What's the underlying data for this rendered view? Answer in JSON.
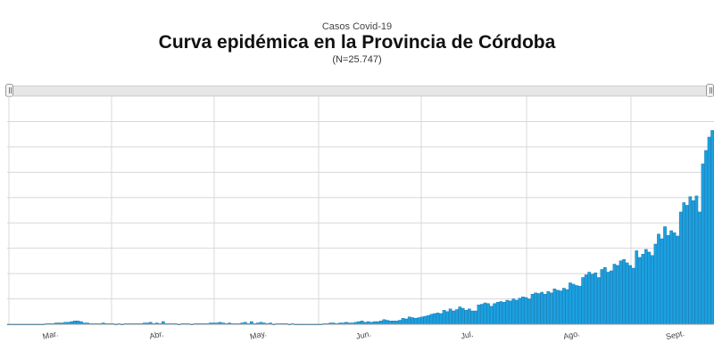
{
  "header": {
    "subtitle": "Casos Covid-19",
    "title": "Curva epidémica en la Provincia de Córdoba",
    "note": "(N=25.747)"
  },
  "chart_data": {
    "type": "bar",
    "title": "Curva epidémica en la Provincia de Córdoba",
    "subtitle": "Casos Covid-19",
    "note": "(N=25.747)",
    "xlabel": "",
    "ylabel": "",
    "grid": true,
    "colors": {
      "bar": "#1ca0e0",
      "bar_stroke": "#0e6fa8",
      "grid": "#d8d8d8"
    },
    "month_labels": [
      "Mar.",
      "Abr.",
      "May.",
      "Jun.",
      "Jul.",
      "Ago.",
      "Sept."
    ],
    "x_start_label": "Mar.",
    "values": [
      0,
      0,
      0,
      0,
      0,
      0,
      0,
      0,
      0,
      0,
      0,
      0,
      1,
      1,
      1,
      2,
      2,
      2,
      3,
      3,
      4,
      5,
      5,
      4,
      2,
      2,
      1,
      1,
      1,
      1,
      2,
      1,
      1,
      1,
      0,
      1,
      0,
      1,
      1,
      1,
      1,
      1,
      1,
      2,
      2,
      3,
      1,
      2,
      1,
      4,
      1,
      1,
      1,
      1,
      0,
      1,
      1,
      1,
      0,
      1,
      1,
      1,
      1,
      1,
      2,
      2,
      2,
      3,
      2,
      1,
      2,
      1,
      1,
      1,
      2,
      3,
      1,
      4,
      1,
      2,
      3,
      2,
      1,
      2,
      0,
      1,
      1,
      1,
      1,
      0,
      1,
      0,
      0,
      0,
      0,
      0,
      0,
      0,
      0,
      0,
      1,
      1,
      2,
      2,
      1,
      2,
      2,
      3,
      2,
      2,
      3,
      4,
      5,
      3,
      4,
      3,
      4,
      4,
      5,
      7,
      6,
      5,
      5,
      5,
      6,
      9,
      8,
      11,
      10,
      9,
      10,
      11,
      12,
      13,
      15,
      16,
      17,
      16,
      21,
      19,
      23,
      20,
      22,
      26,
      24,
      21,
      23,
      20,
      20,
      29,
      30,
      32,
      31,
      27,
      31,
      33,
      34,
      33,
      36,
      35,
      38,
      36,
      39,
      41,
      40,
      38,
      45,
      47,
      46,
      48,
      45,
      49,
      47,
      53,
      51,
      50,
      54,
      52,
      62,
      60,
      58,
      57,
      70,
      74,
      78,
      75,
      77,
      70,
      82,
      85,
      78,
      80,
      90,
      88,
      95,
      97,
      92,
      88,
      84,
      110,
      100,
      105,
      112,
      108,
      103,
      120,
      135,
      128,
      146,
      133,
      140,
      137,
      132,
      168,
      182,
      178,
      191,
      185,
      192,
      168,
      240,
      260,
      280,
      290
    ]
  }
}
